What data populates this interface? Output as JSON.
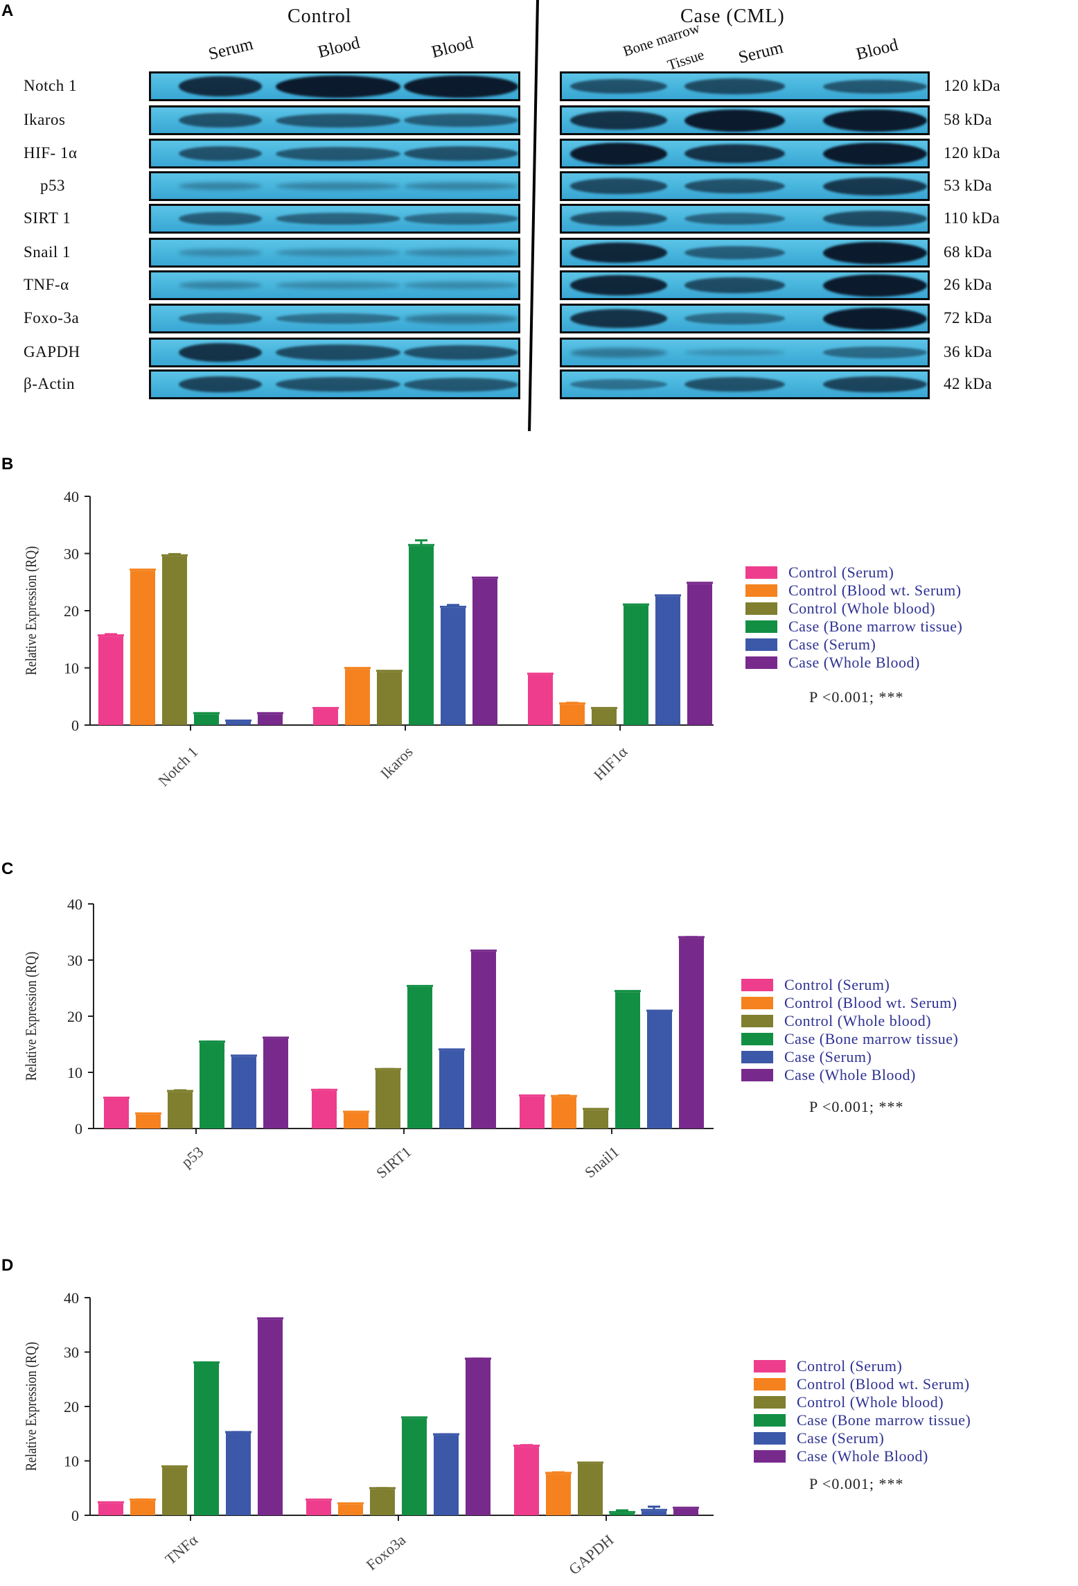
{
  "panels": {
    "a": "A",
    "b": "B",
    "c": "C",
    "d": "D"
  },
  "western_blot": {
    "control_title": "Control",
    "case_title": "Case (CML)",
    "control_lanes": [
      "Serum",
      "Blood",
      "Blood"
    ],
    "case_lanes": [
      "Bone marrow",
      "Tissue",
      "Serum",
      "Blood"
    ],
    "rows": [
      {
        "protein": "Notch 1",
        "kda": "120 kDa",
        "control": [
          0.85,
          1.0,
          1.0
        ],
        "case": [
          0.55,
          0.6,
          0.5
        ]
      },
      {
        "protein": "Ikaros",
        "kda": "58 kDa",
        "control": [
          0.55,
          0.5,
          0.45
        ],
        "case": [
          0.8,
          1.0,
          1.0
        ]
      },
      {
        "protein": "HIF- 1α",
        "kda": "120 kDa",
        "control": [
          0.55,
          0.5,
          0.55
        ],
        "case": [
          1.0,
          0.8,
          1.0
        ]
      },
      {
        "protein": "p53",
        "kda": "53 kDa",
        "control": [
          0.15,
          0.15,
          0.15
        ],
        "case": [
          0.6,
          0.55,
          0.75
        ]
      },
      {
        "protein": "SIRT 1",
        "kda": "110 kDa",
        "control": [
          0.45,
          0.4,
          0.35
        ],
        "case": [
          0.55,
          0.4,
          0.6
        ]
      },
      {
        "protein": "Snail 1",
        "kda": "68 kDa",
        "control": [
          0.1,
          0.1,
          0.12
        ],
        "case": [
          0.9,
          0.45,
          1.0
        ]
      },
      {
        "protein": "TNF-α",
        "kda": "26 kDa",
        "control": [
          0.15,
          0.1,
          0.1
        ],
        "case": [
          0.9,
          0.6,
          1.0
        ]
      },
      {
        "protein": "Foxo-3a",
        "kda": "72 kDa",
        "control": [
          0.35,
          0.3,
          0.25
        ],
        "case": [
          0.8,
          0.35,
          1.0
        ]
      },
      {
        "protein": "GAPDH",
        "kda": "36 kDa",
        "control": [
          0.8,
          0.6,
          0.55
        ],
        "case": [
          0.25,
          0.05,
          0.35
        ]
      },
      {
        "protein": "β-Actin",
        "kda": "42 kDa",
        "control": [
          0.65,
          0.55,
          0.5
        ],
        "case": [
          0.3,
          0.55,
          0.65
        ]
      }
    ]
  },
  "colors": {
    "control_serum": "#ee3d8c",
    "control_blood_wt_serum": "#f5821f",
    "control_whole_blood": "#7f7f2f",
    "case_bone_marrow": "#138f44",
    "case_serum": "#3c58a8",
    "case_whole_blood": "#782a8c",
    "legend_text": "#2e3192",
    "blot_bg": "#46b4dc",
    "band": "#0b1a2c"
  },
  "chart_data": [
    {
      "panel": "B",
      "type": "bar",
      "categories": [
        "Notch 1",
        "Ikaros",
        "HIF1α"
      ],
      "ylabel": "Relative Expression (RQ)",
      "xlabel": "",
      "title": "",
      "ylim": [
        0,
        40
      ],
      "yticks": [
        "0",
        "10",
        "20",
        "30",
        "40"
      ],
      "series": [
        {
          "name": "Control (Serum)",
          "values": [
            15.5,
            2.8,
            8.8
          ],
          "errors": [
            0.4,
            0,
            0
          ]
        },
        {
          "name": "Control (Blood wt. Serum)",
          "values": [
            27.0,
            9.8,
            3.6
          ],
          "errors": [
            0,
            0,
            0.3
          ]
        },
        {
          "name": "Control (Whole blood)",
          "values": [
            29.5,
            9.3,
            2.8
          ],
          "errors": [
            0.4,
            0,
            0
          ]
        },
        {
          "name": "Case (Bone marrow tissue)",
          "values": [
            1.9,
            31.3,
            20.9
          ],
          "errors": [
            0,
            1.0,
            0
          ]
        },
        {
          "name": "Case (Serum)",
          "values": [
            0.6,
            20.5,
            22.5
          ],
          "errors": [
            0,
            0.5,
            0
          ]
        },
        {
          "name": "Case (Whole Blood)",
          "values": [
            1.9,
            25.6,
            24.7
          ],
          "errors": [
            0,
            0,
            0
          ]
        }
      ],
      "legend_position": "right",
      "annotation": "P <0.001; ***"
    },
    {
      "panel": "C",
      "type": "bar",
      "categories": [
        "p53",
        "SIRT1",
        "Snail1"
      ],
      "ylabel": "Relative Expression (RQ)",
      "xlabel": "",
      "title": "",
      "ylim": [
        0,
        40
      ],
      "yticks": [
        "0",
        "10",
        "20",
        "30",
        "40"
      ],
      "series": [
        {
          "name": "Control (Serum)",
          "values": [
            5.3,
            6.7,
            5.7
          ],
          "errors": [
            0,
            0.2,
            0
          ]
        },
        {
          "name": "Control (Blood wt. Serum)",
          "values": [
            2.5,
            2.8,
            5.6
          ],
          "errors": [
            0,
            0,
            0.3
          ]
        },
        {
          "name": "Control (Whole blood)",
          "values": [
            6.5,
            10.4,
            3.3
          ],
          "errors": [
            0.3,
            0.2,
            0
          ]
        },
        {
          "name": "Case (Bone marrow tissue)",
          "values": [
            15.3,
            25.2,
            24.3
          ],
          "errors": [
            0.2,
            0,
            0
          ]
        },
        {
          "name": "Case (Serum)",
          "values": [
            12.8,
            13.9,
            20.8
          ],
          "errors": [
            0,
            0,
            0
          ]
        },
        {
          "name": "Case (Whole Blood)",
          "values": [
            16.0,
            31.5,
            33.9
          ],
          "errors": [
            0,
            0,
            0.2
          ]
        }
      ],
      "legend_position": "right",
      "annotation": "P <0.001; ***"
    },
    {
      "panel": "D",
      "type": "bar",
      "categories": [
        "TNFα",
        "Foxo3a",
        "GAPDH"
      ],
      "ylabel": "Relative Expression (RQ)",
      "xlabel": "",
      "title": "",
      "ylim": [
        0,
        40
      ],
      "yticks": [
        "0",
        "10",
        "20",
        "30",
        "40"
      ],
      "series": [
        {
          "name": "Control (Serum)",
          "values": [
            2.2,
            2.7,
            12.6
          ],
          "errors": [
            0,
            0,
            0.3
          ]
        },
        {
          "name": "Control (Blood wt. Serum)",
          "values": [
            2.7,
            2.0,
            7.6
          ],
          "errors": [
            0.2,
            0,
            0.3
          ]
        },
        {
          "name": "Control (Whole blood)",
          "values": [
            8.8,
            4.8,
            9.5
          ],
          "errors": [
            0,
            0.2,
            0
          ]
        },
        {
          "name": "Case (Bone marrow tissue)",
          "values": [
            27.9,
            17.8,
            0.4
          ],
          "errors": [
            0.2,
            0,
            0.5
          ]
        },
        {
          "name": "Case (Serum)",
          "values": [
            15.1,
            14.7,
            0.8
          ],
          "errors": [
            0.2,
            0.2,
            0.8
          ]
        },
        {
          "name": "Case (Whole Blood)",
          "values": [
            36.0,
            28.6,
            1.2
          ],
          "errors": [
            0,
            0.2,
            0
          ]
        }
      ],
      "legend_position": "right",
      "annotation": "P <0.001; ***"
    }
  ]
}
